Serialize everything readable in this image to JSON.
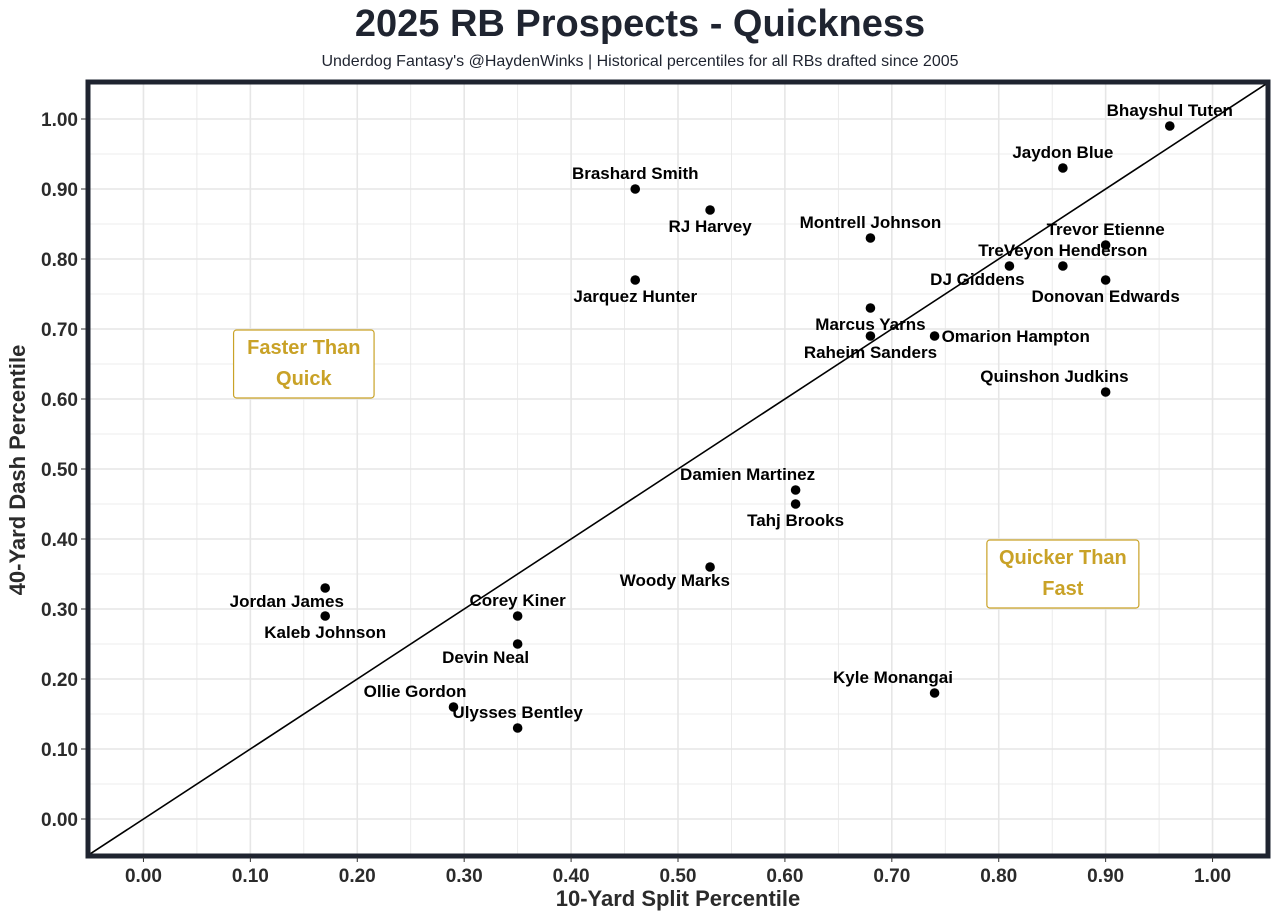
{
  "page": {
    "title": "2025 RB Prospects - Quickness",
    "subtitle": "Underdog Fantasy's @HaydenWinks | Historical percentiles for all RBs drafted since 2005"
  },
  "chart_data": {
    "type": "scatter",
    "title": "2025 RB Prospects - Quickness",
    "subtitle": "Underdog Fantasy's @HaydenWinks | Historical percentiles for all RBs drafted since 2005",
    "xlabel": "10-Yard Split Percentile",
    "ylabel": "40-Yard Dash Percentile",
    "xlim": [
      -0.05,
      1.05
    ],
    "ylim": [
      -0.05,
      1.05
    ],
    "xticks": [
      "0.00",
      "0.10",
      "0.20",
      "0.30",
      "0.40",
      "0.50",
      "0.60",
      "0.70",
      "0.80",
      "0.90",
      "1.00"
    ],
    "yticks": [
      "0.00",
      "0.10",
      "0.20",
      "0.30",
      "0.40",
      "0.50",
      "0.60",
      "0.70",
      "0.80",
      "0.90",
      "1.00"
    ],
    "grid": true,
    "reference_line": "y = x",
    "colors": {
      "point": "#000000",
      "grid": "#e6e6e6",
      "frame": "#1f2430",
      "annotation": "#c9a227"
    },
    "annotations": [
      {
        "lines": [
          "Faster Than",
          "Quick"
        ],
        "x": 0.15,
        "y": 0.65
      },
      {
        "lines": [
          "Quicker Than",
          "Fast"
        ],
        "x": 0.86,
        "y": 0.35
      }
    ],
    "points": [
      {
        "name": "Bhayshul Tuten",
        "x": 0.96,
        "y": 0.99,
        "label_pos": "above"
      },
      {
        "name": "Jaydon Blue",
        "x": 0.86,
        "y": 0.93,
        "label_pos": "above"
      },
      {
        "name": "Brashard Smith",
        "x": 0.46,
        "y": 0.9,
        "label_pos": "above"
      },
      {
        "name": "RJ Harvey",
        "x": 0.53,
        "y": 0.87,
        "label_pos": "below"
      },
      {
        "name": "Montrell Johnson",
        "x": 0.68,
        "y": 0.83,
        "label_pos": "above"
      },
      {
        "name": "Trevor Etienne",
        "x": 0.9,
        "y": 0.82,
        "label_pos": "above"
      },
      {
        "name": "TreVeyon Henderson",
        "x": 0.86,
        "y": 0.79,
        "label_pos": "above"
      },
      {
        "name": "DJ Giddens",
        "x": 0.81,
        "y": 0.79,
        "label_pos": "below-left"
      },
      {
        "name": "Jarquez Hunter",
        "x": 0.46,
        "y": 0.77,
        "label_pos": "below"
      },
      {
        "name": "Donovan Edwards",
        "x": 0.9,
        "y": 0.77,
        "label_pos": "below"
      },
      {
        "name": "Marcus Yarns",
        "x": 0.68,
        "y": 0.73,
        "label_pos": "below"
      },
      {
        "name": "Omarion Hampton",
        "x": 0.74,
        "y": 0.69,
        "label_pos": "right"
      },
      {
        "name": "Raheim Sanders",
        "x": 0.68,
        "y": 0.69,
        "label_pos": "below"
      },
      {
        "name": "Quinshon Judkins",
        "x": 0.9,
        "y": 0.61,
        "label_pos": "above-left"
      },
      {
        "name": "Damien Martinez",
        "x": 0.61,
        "y": 0.47,
        "label_pos": "above-left"
      },
      {
        "name": "Tahj Brooks",
        "x": 0.61,
        "y": 0.45,
        "label_pos": "below"
      },
      {
        "name": "Woody Marks",
        "x": 0.53,
        "y": 0.36,
        "label_pos": "below-left"
      },
      {
        "name": "Jordan James",
        "x": 0.17,
        "y": 0.33,
        "label_pos": "below-left"
      },
      {
        "name": "Corey Kiner",
        "x": 0.35,
        "y": 0.29,
        "label_pos": "above"
      },
      {
        "name": "Kaleb Johnson",
        "x": 0.17,
        "y": 0.29,
        "label_pos": "below"
      },
      {
        "name": "Devin Neal",
        "x": 0.35,
        "y": 0.25,
        "label_pos": "below-left"
      },
      {
        "name": "Kyle Monangai",
        "x": 0.74,
        "y": 0.18,
        "label_pos": "above-left"
      },
      {
        "name": "Ollie Gordon",
        "x": 0.29,
        "y": 0.16,
        "label_pos": "above-left"
      },
      {
        "name": "Ulysses Bentley",
        "x": 0.35,
        "y": 0.13,
        "label_pos": "above"
      }
    ]
  }
}
